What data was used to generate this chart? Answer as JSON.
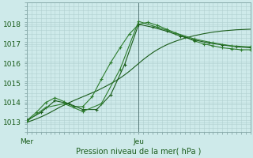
{
  "xlabel": "Pression niveau de la mer( hPa )",
  "background_color": "#ceeaea",
  "grid_color": "#b0d0d0",
  "line_color_dark": "#1a5c1a",
  "line_color_mid": "#2e7d2e",
  "ylim": [
    1012.5,
    1019.0
  ],
  "xlim": [
    0,
    48
  ],
  "xtick_positions": [
    0,
    24
  ],
  "xtick_labels": [
    "Mer",
    "Jeu"
  ],
  "ytick_positions": [
    1013,
    1014,
    1015,
    1016,
    1017,
    1018
  ],
  "vline_x": 24,
  "series1_x": [
    0,
    1,
    2,
    3,
    4,
    5,
    6,
    7,
    8,
    9,
    10,
    11,
    12,
    13,
    14,
    15,
    16,
    17,
    18,
    19,
    20,
    21,
    22,
    23,
    24,
    25,
    26,
    27,
    28,
    29,
    30,
    31,
    32,
    33,
    34,
    35,
    36,
    37,
    38,
    39,
    40,
    41,
    42,
    43,
    44,
    45,
    46,
    47,
    48
  ],
  "series1_y": [
    1013.0,
    1013.08,
    1013.17,
    1013.27,
    1013.38,
    1013.5,
    1013.63,
    1013.76,
    1013.88,
    1013.99,
    1014.1,
    1014.2,
    1014.3,
    1014.4,
    1014.5,
    1014.6,
    1014.72,
    1014.84,
    1014.97,
    1015.1,
    1015.25,
    1015.42,
    1015.6,
    1015.8,
    1016.0,
    1016.2,
    1016.38,
    1016.55,
    1016.7,
    1016.83,
    1016.95,
    1017.05,
    1017.14,
    1017.22,
    1017.3,
    1017.36,
    1017.42,
    1017.47,
    1017.52,
    1017.56,
    1017.6,
    1017.63,
    1017.66,
    1017.68,
    1017.7,
    1017.72,
    1017.73,
    1017.74,
    1017.75
  ],
  "series2_x": [
    0,
    2,
    4,
    6,
    8,
    10,
    12,
    14,
    16,
    18,
    20,
    22,
    24,
    26,
    28,
    30,
    32,
    34,
    36,
    38,
    40,
    42,
    44,
    46,
    48
  ],
  "series2_y": [
    1013.1,
    1013.5,
    1014.0,
    1014.25,
    1014.05,
    1013.8,
    1013.8,
    1014.3,
    1015.2,
    1016.05,
    1016.8,
    1017.5,
    1018.0,
    1018.1,
    1017.95,
    1017.75,
    1017.55,
    1017.35,
    1017.15,
    1017.0,
    1016.9,
    1016.8,
    1016.75,
    1016.7,
    1016.7
  ],
  "series3_x": [
    0,
    3,
    6,
    9,
    12,
    15,
    18,
    21,
    24,
    27,
    30,
    33,
    36,
    39,
    42,
    45,
    48
  ],
  "series3_y": [
    1013.1,
    1013.5,
    1014.1,
    1013.95,
    1013.65,
    1013.65,
    1014.4,
    1015.95,
    1018.0,
    1017.85,
    1017.65,
    1017.4,
    1017.2,
    1017.05,
    1016.95,
    1016.85,
    1016.8
  ],
  "series4_x": [
    0,
    4,
    8,
    12,
    16,
    20,
    24,
    28,
    32,
    36,
    40,
    44,
    48
  ],
  "series4_y": [
    1013.05,
    1013.75,
    1013.95,
    1013.55,
    1013.95,
    1015.7,
    1018.15,
    1017.85,
    1017.55,
    1017.25,
    1017.05,
    1016.9,
    1016.85
  ]
}
